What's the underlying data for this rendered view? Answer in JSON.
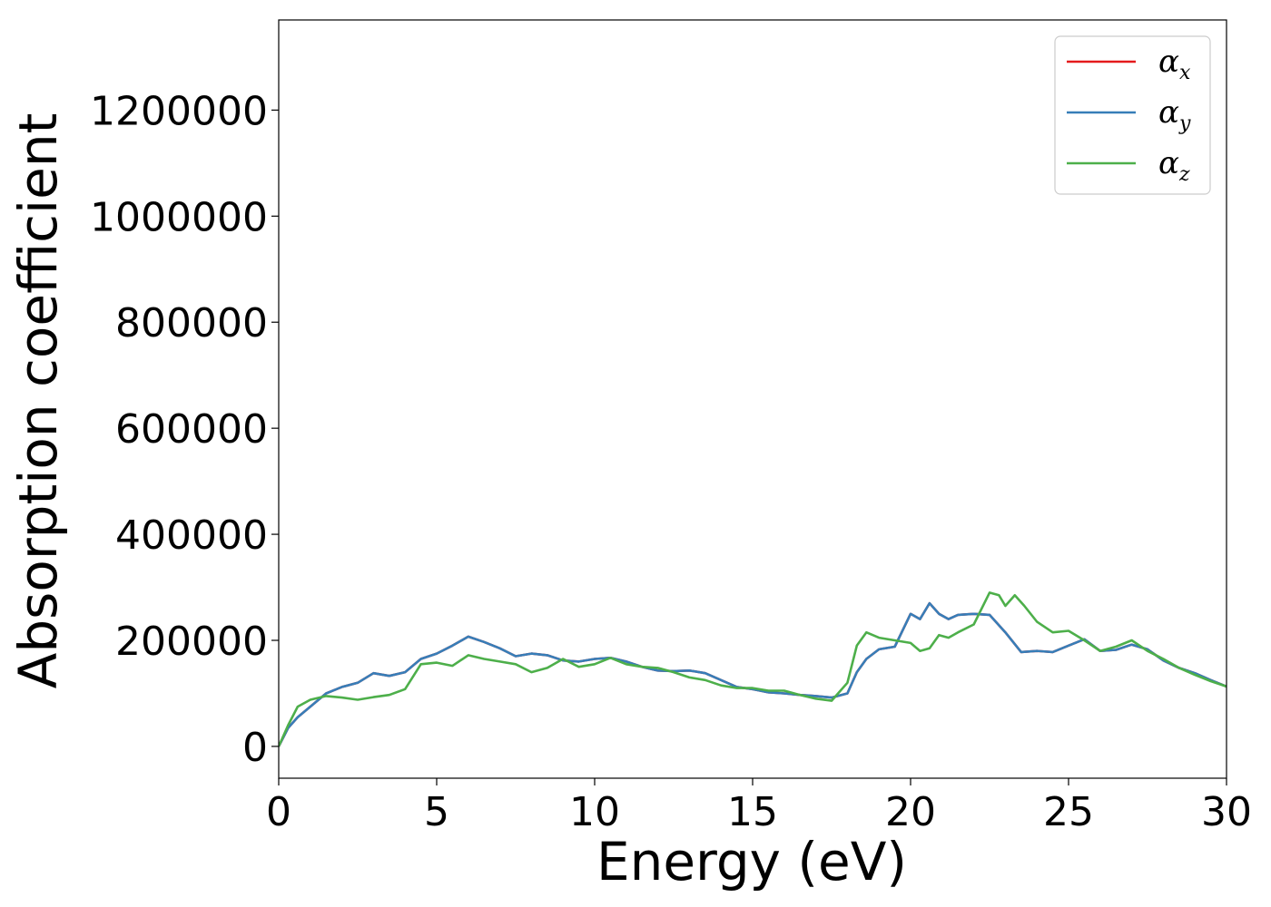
{
  "chart_data": {
    "type": "line",
    "xlabel": "Energy (eV)",
    "ylabel": "Absorption coefficient",
    "xlim": [
      0,
      30
    ],
    "ylim": [
      -60000,
      1370000
    ],
    "xticks": [
      "0",
      "5",
      "10",
      "15",
      "20",
      "25",
      "30"
    ],
    "yticks": [
      "0",
      "200000",
      "400000",
      "600000",
      "800000",
      "1000000",
      "1200000"
    ],
    "legend_position": "top-right",
    "grid": false,
    "colors": {
      "alpha_x": "#e41a1c",
      "alpha_y": "#377eb8",
      "alpha_z": "#4daf4a"
    },
    "series": [
      {
        "name": "α",
        "subscript": "x",
        "color": "#e41a1c",
        "x": [
          0,
          0.3,
          0.6,
          1.0,
          1.5,
          2.0,
          2.5,
          3.0,
          3.5,
          4.0,
          4.5,
          5.0,
          5.5,
          6.0,
          6.5,
          7.0,
          7.5,
          8.0,
          8.5,
          9.0,
          9.5,
          10.0,
          10.5,
          11.0,
          11.5,
          12.0,
          12.5,
          13.0,
          13.5,
          14.0,
          14.5,
          15.0,
          15.5,
          16.0,
          16.5,
          17.0,
          17.5,
          18.0,
          18.3,
          18.6,
          19.0,
          19.5,
          20.0,
          20.3,
          20.6,
          20.9,
          21.2,
          21.5,
          22.0,
          22.5,
          23.0,
          23.5,
          24.0,
          24.5,
          25.0,
          25.5,
          26.0,
          26.5,
          27.0,
          27.5,
          28.0,
          28.5,
          29.0,
          29.5,
          30.0
        ],
        "y": [
          0,
          35000,
          55000,
          75000,
          100000,
          112000,
          120000,
          138000,
          133000,
          140000,
          165000,
          175000,
          190000,
          207000,
          197000,
          185000,
          170000,
          175000,
          172000,
          162000,
          160000,
          165000,
          167000,
          160000,
          150000,
          143000,
          142000,
          143000,
          138000,
          125000,
          112000,
          108000,
          102000,
          100000,
          97000,
          95000,
          92000,
          100000,
          140000,
          165000,
          183000,
          188000,
          250000,
          240000,
          270000,
          250000,
          240000,
          248000,
          250000,
          248000,
          215000,
          178000,
          180000,
          178000,
          190000,
          202000,
          180000,
          182000,
          192000,
          183000,
          162000,
          148000,
          138000,
          125000,
          113000
        ]
      },
      {
        "name": "α",
        "subscript": "y",
        "color": "#377eb8",
        "x": [
          0,
          0.3,
          0.6,
          1.0,
          1.5,
          2.0,
          2.5,
          3.0,
          3.5,
          4.0,
          4.5,
          5.0,
          5.5,
          6.0,
          6.5,
          7.0,
          7.5,
          8.0,
          8.5,
          9.0,
          9.5,
          10.0,
          10.5,
          11.0,
          11.5,
          12.0,
          12.5,
          13.0,
          13.5,
          14.0,
          14.5,
          15.0,
          15.5,
          16.0,
          16.5,
          17.0,
          17.5,
          18.0,
          18.3,
          18.6,
          19.0,
          19.5,
          20.0,
          20.3,
          20.6,
          20.9,
          21.2,
          21.5,
          22.0,
          22.5,
          23.0,
          23.5,
          24.0,
          24.5,
          25.0,
          25.5,
          26.0,
          26.5,
          27.0,
          27.5,
          28.0,
          28.5,
          29.0,
          29.5,
          30.0
        ],
        "y": [
          0,
          35000,
          55000,
          75000,
          100000,
          112000,
          120000,
          138000,
          133000,
          140000,
          165000,
          175000,
          190000,
          207000,
          197000,
          185000,
          170000,
          175000,
          172000,
          162000,
          160000,
          165000,
          167000,
          160000,
          150000,
          143000,
          142000,
          143000,
          138000,
          125000,
          112000,
          108000,
          102000,
          100000,
          97000,
          95000,
          92000,
          100000,
          140000,
          165000,
          183000,
          188000,
          250000,
          240000,
          270000,
          250000,
          240000,
          248000,
          250000,
          248000,
          215000,
          178000,
          180000,
          178000,
          190000,
          202000,
          180000,
          182000,
          192000,
          183000,
          162000,
          148000,
          138000,
          125000,
          113000
        ]
      },
      {
        "name": "α",
        "subscript": "z",
        "color": "#4daf4a",
        "x": [
          0,
          0.3,
          0.6,
          1.0,
          1.5,
          2.0,
          2.5,
          3.0,
          3.5,
          4.0,
          4.5,
          5.0,
          5.5,
          6.0,
          6.5,
          7.0,
          7.5,
          8.0,
          8.5,
          9.0,
          9.5,
          10.0,
          10.5,
          11.0,
          11.5,
          12.0,
          12.5,
          13.0,
          13.5,
          14.0,
          14.5,
          15.0,
          15.5,
          16.0,
          16.5,
          17.0,
          17.5,
          18.0,
          18.3,
          18.6,
          19.0,
          19.5,
          20.0,
          20.3,
          20.6,
          20.9,
          21.2,
          21.5,
          22.0,
          22.5,
          22.8,
          23.0,
          23.3,
          23.6,
          24.0,
          24.5,
          25.0,
          25.5,
          26.0,
          26.5,
          27.0,
          27.5,
          28.0,
          28.5,
          29.0,
          29.5,
          30.0
        ],
        "y": [
          0,
          40000,
          75000,
          88000,
          95000,
          92000,
          88000,
          93000,
          97000,
          108000,
          155000,
          158000,
          152000,
          172000,
          165000,
          160000,
          155000,
          140000,
          148000,
          165000,
          150000,
          155000,
          167000,
          155000,
          150000,
          148000,
          140000,
          130000,
          125000,
          115000,
          110000,
          110000,
          105000,
          105000,
          97000,
          90000,
          86000,
          120000,
          190000,
          215000,
          205000,
          200000,
          195000,
          180000,
          185000,
          210000,
          205000,
          215000,
          230000,
          290000,
          285000,
          265000,
          285000,
          265000,
          235000,
          215000,
          218000,
          200000,
          180000,
          188000,
          200000,
          180000,
          165000,
          148000,
          135000,
          123000,
          113000
        ]
      }
    ]
  }
}
